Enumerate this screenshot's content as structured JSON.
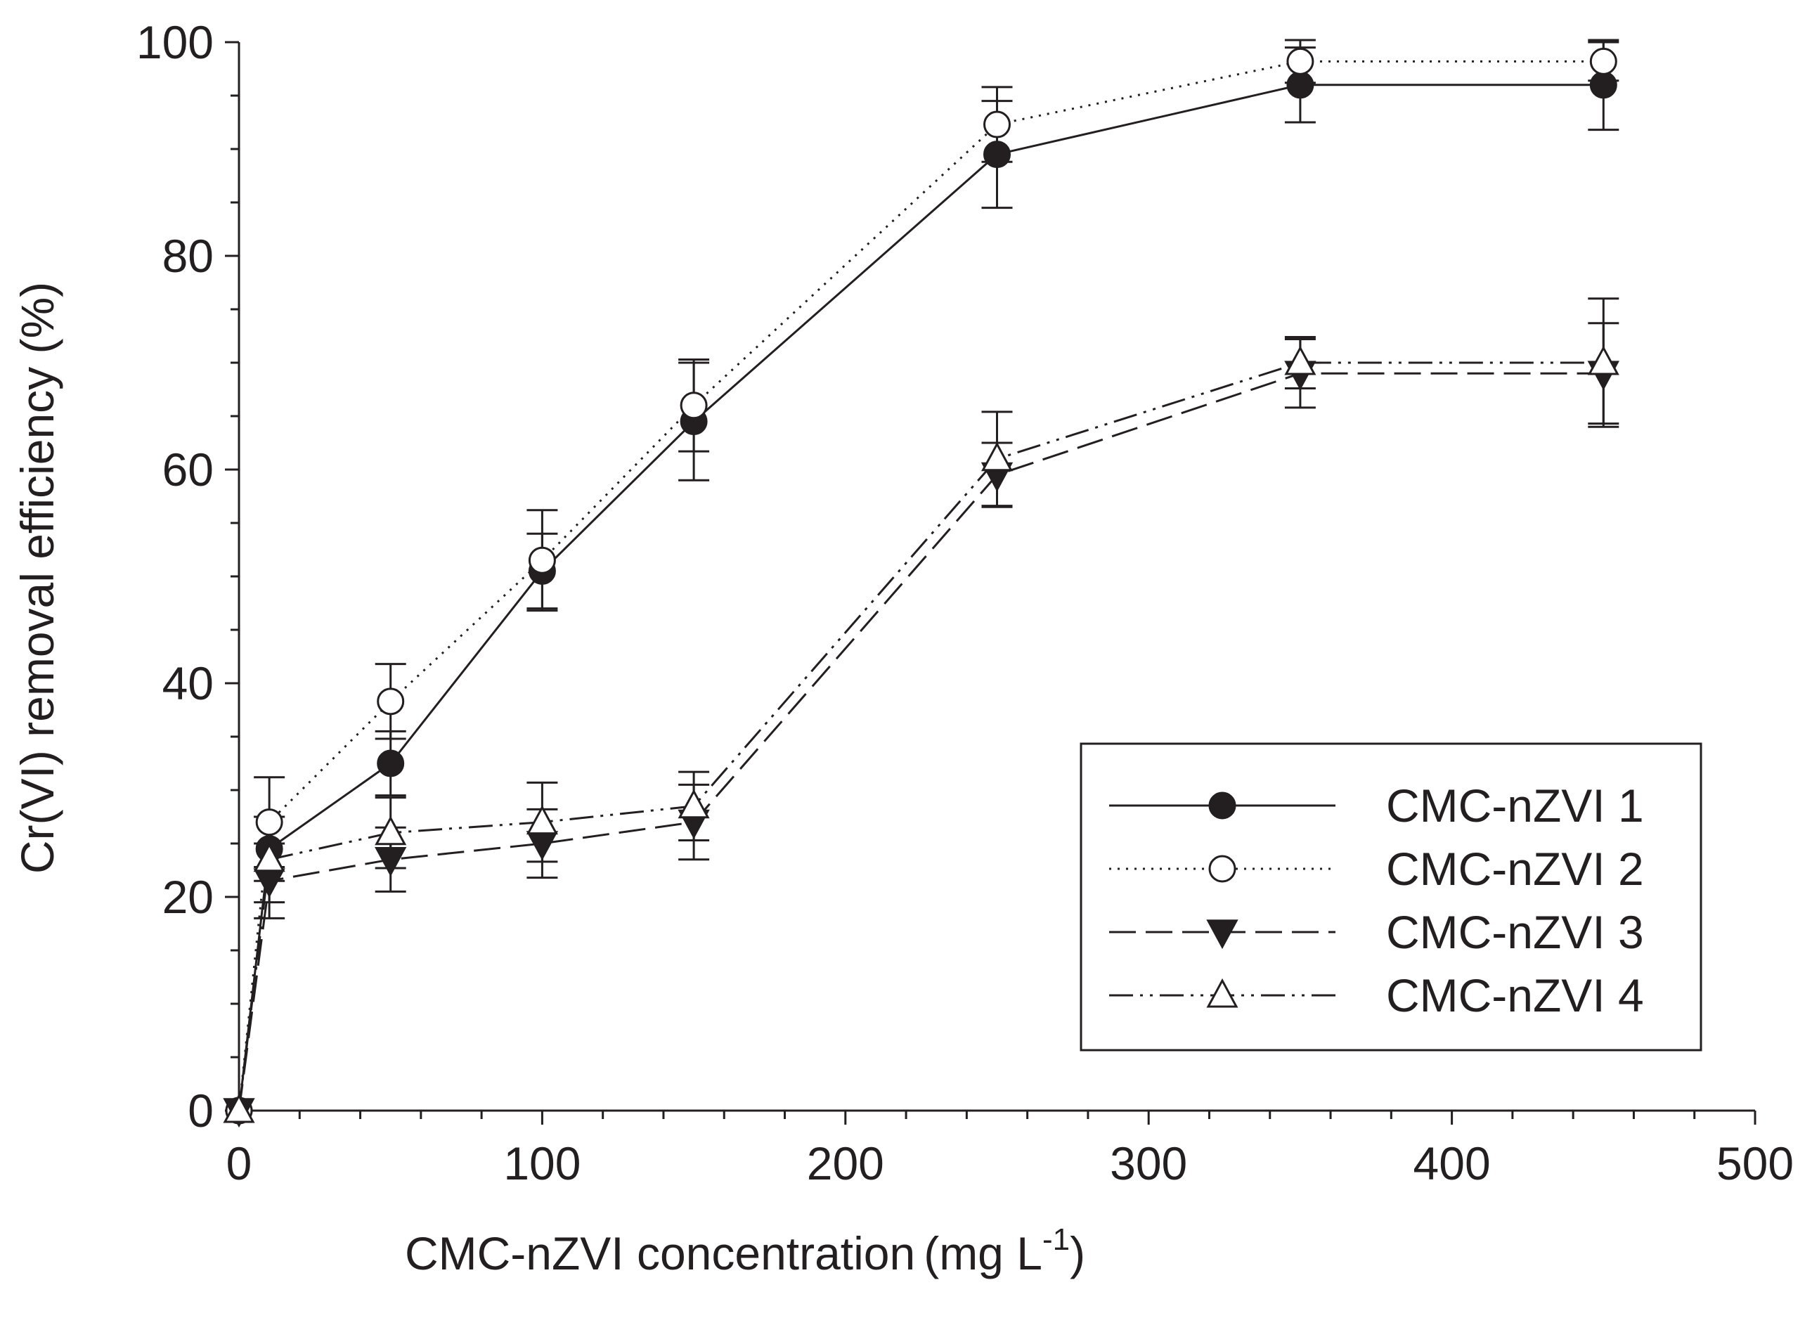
{
  "chart_data": {
    "type": "line",
    "title": "",
    "xlabel": "CMC-nZVI concentration",
    "xlabel_unit": "(mg L",
    "xlabel_unit_exponent": "-1",
    "xlabel_unit_close": ")",
    "ylabel": "Cr(VI) removal efficiency (%)",
    "xlim": [
      0,
      500
    ],
    "ylim": [
      0,
      100
    ],
    "x_ticks": [
      0,
      100,
      200,
      300,
      400,
      500
    ],
    "y_ticks": [
      0,
      20,
      40,
      60,
      80,
      100
    ],
    "x_tick_labels": [
      "0",
      "100",
      "200",
      "300",
      "400",
      "500"
    ],
    "y_tick_labels": [
      "0",
      "20",
      "40",
      "60",
      "80",
      "100"
    ],
    "grid": false,
    "legend_position": "bottom-right",
    "x": [
      0,
      10,
      50,
      100,
      150,
      250,
      350,
      450
    ],
    "series": [
      {
        "name": "CMC-nZVI 1",
        "marker": "filled-circle",
        "line_style": "solid",
        "values": [
          0,
          24.5,
          32.5,
          50.5,
          64.5,
          89.5,
          96,
          96
        ],
        "errors": [
          0,
          3,
          3,
          3.5,
          5.5,
          5,
          3.5,
          4.2
        ]
      },
      {
        "name": "CMC-nZVI 2",
        "marker": "open-circle",
        "line_style": "dotted",
        "values": [
          0,
          27,
          38.3,
          51.5,
          66,
          92.3,
          98.2,
          98.2
        ],
        "errors": [
          0,
          4.2,
          3.5,
          4.7,
          4.3,
          3.5,
          2,
          1.8
        ]
      },
      {
        "name": "CMC-nZVI 3",
        "marker": "filled-triangle-down",
        "line_style": "dashed",
        "values": [
          0,
          21.5,
          23.5,
          25,
          27,
          59.5,
          69,
          69
        ],
        "errors": [
          0,
          3.5,
          3,
          3.2,
          3.5,
          3,
          3.2,
          4.7
        ]
      },
      {
        "name": "CMC-nZVI 4",
        "marker": "open-triangle-up",
        "line_style": "dash-dot-dot",
        "values": [
          0,
          23.5,
          26,
          27,
          28.5,
          61,
          70,
          70
        ],
        "errors": [
          0,
          4,
          3.3,
          3.7,
          3.2,
          4.4,
          2.4,
          6
        ]
      }
    ]
  }
}
